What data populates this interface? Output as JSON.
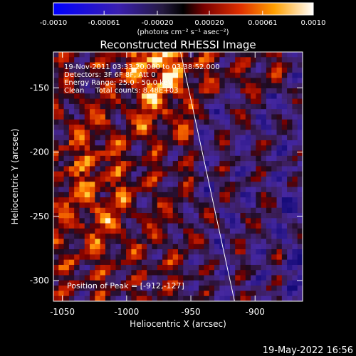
{
  "chart_data": {
    "type": "heatmap",
    "title": "Reconstructed RHESSI Image",
    "xlabel": "Heliocentric X (arcsec)",
    "ylabel": "Heliocentric Y (arcsec)",
    "xlim": [
      -1057,
      -863
    ],
    "ylim": [
      -316,
      -122
    ],
    "x_ticks": [
      -1050,
      -1000,
      -950,
      -900
    ],
    "x_tick_labels": [
      "-1050",
      "-1000",
      "-950",
      "-900"
    ],
    "y_ticks": [
      -150,
      -200,
      -250,
      -300
    ],
    "y_tick_labels": [
      "-150",
      "-200",
      "-250",
      "-300"
    ],
    "colorbar": {
      "range": [
        -0.001,
        0.001
      ],
      "ticks": [
        -0.001,
        -0.00061,
        -0.0002,
        0.0002,
        0.00061,
        0.001
      ],
      "tick_labels": [
        "-0.0010",
        "-0.00061",
        "-0.00020",
        "0.00020",
        "0.00061",
        "0.0010"
      ],
      "units_label": "(photons cm⁻² s⁻¹ asec⁻²)"
    },
    "annotations": [
      "19-Nov-2011 03:33:20.000 to 03:38:52.000",
      "Detectors: 3F 6F 8F, Att 0",
      "Energy Range: 25.0 - 50.0 keV",
      "Clean     Total counts: 8.48E+03"
    ],
    "peak_label": "Position of Peak = [-912,-127]",
    "limb_line": [
      [
        -958,
        -122
      ],
      [
        -916,
        -316
      ]
    ],
    "grid": {
      "cols": 48,
      "rows": 48
    }
  },
  "footer_date": "19-May-2022 16:56"
}
